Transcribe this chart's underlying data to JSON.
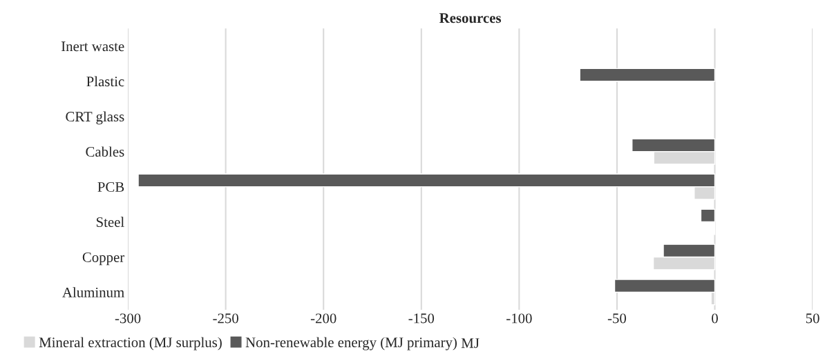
{
  "chart_data": {
    "type": "bar",
    "orientation": "horizontal",
    "title": "Resources",
    "xlabel": "MJ",
    "categories": [
      "Inert waste",
      "Plastic",
      "CRT glass",
      "Cables",
      "PCB",
      "Steel",
      "Copper",
      "Aluminum"
    ],
    "series": [
      {
        "name": "Mineral extraction (MJ surplus)",
        "color": "#d9d9d9",
        "values": [
          null,
          null,
          null,
          -31.2,
          -10.5,
          -0.4,
          -31.4,
          -1.9
        ]
      },
      {
        "name": "Non-renewable energy (MJ primary)",
        "color": "#595959",
        "values": [
          null,
          -69.0,
          null,
          -42.3,
          -294.7,
          -7.1,
          -26.3,
          -51.2
        ]
      }
    ],
    "xlim": [
      -300,
      50
    ],
    "xticks": [
      -300,
      -250,
      -200,
      -150,
      -100,
      -50,
      0,
      50
    ],
    "grid": "x",
    "legend": "bottom left"
  }
}
